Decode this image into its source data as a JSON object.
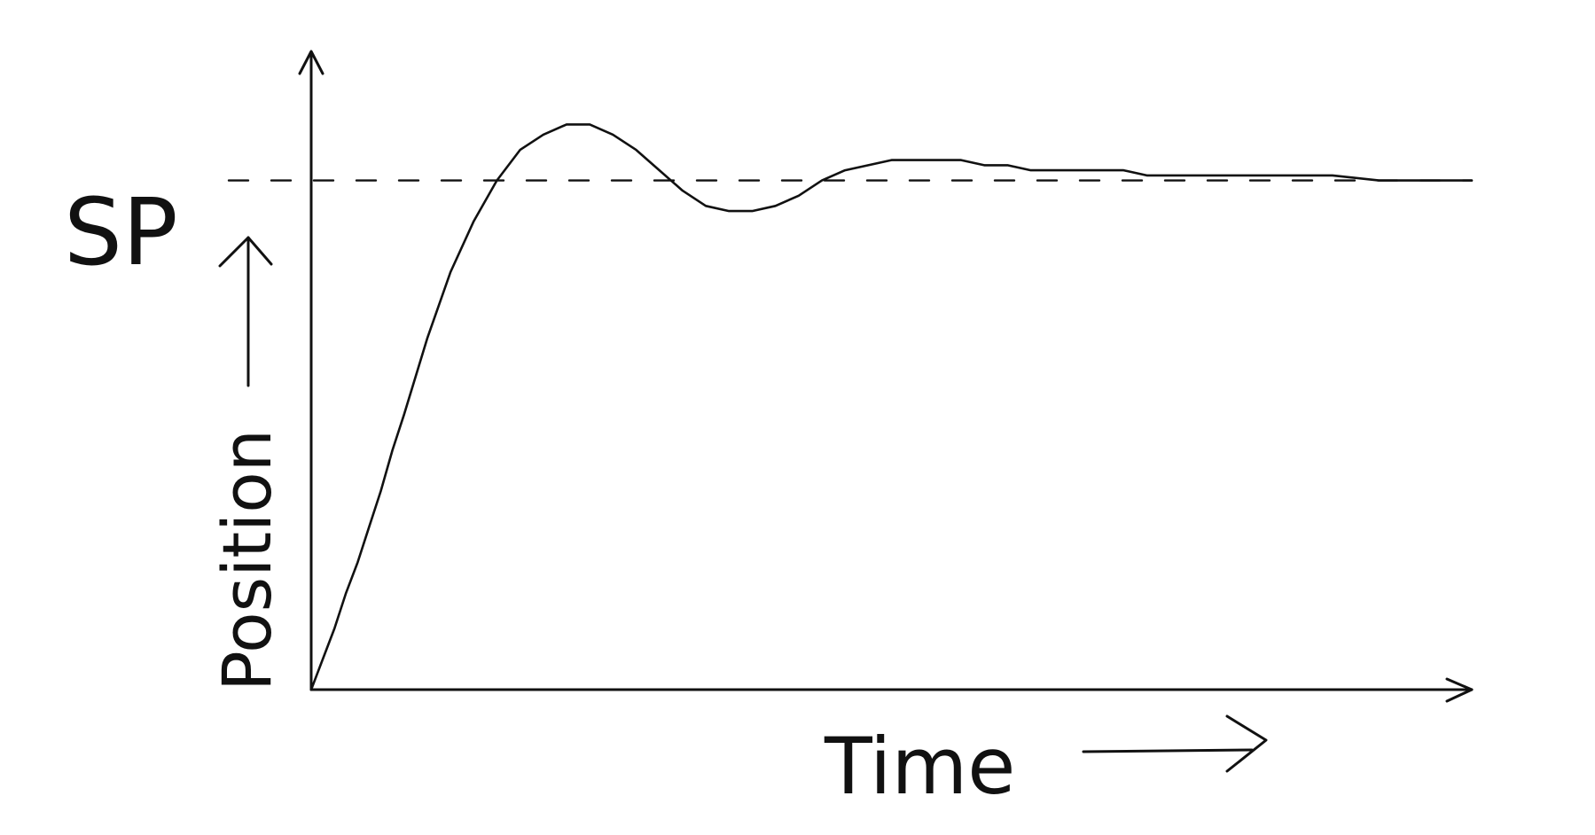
{
  "chart_data": {
    "type": "line",
    "title": "",
    "xlabel": "Time",
    "ylabel": "Position",
    "xlim": [
      0,
      100
    ],
    "ylim": [
      0,
      1.25
    ],
    "grid": false,
    "legend": "none",
    "reference_lines": [
      {
        "label": "SP",
        "y": 1.0,
        "style": "dashed"
      }
    ],
    "series": [
      {
        "x": [
          0,
          1,
          2,
          3,
          4,
          5,
          6,
          7,
          8,
          10,
          12,
          14,
          16,
          18,
          20,
          22,
          24,
          26,
          28,
          30,
          32,
          34,
          36,
          38,
          40,
          42,
          44,
          46,
          48,
          50,
          52,
          54,
          56,
          58,
          60,
          62,
          64,
          66,
          68,
          70,
          72,
          74,
          76,
          78,
          80,
          84,
          88,
          92,
          96,
          100
        ],
        "y": [
          0,
          0.06,
          0.12,
          0.19,
          0.25,
          0.32,
          0.39,
          0.47,
          0.54,
          0.69,
          0.82,
          0.92,
          1.0,
          1.06,
          1.09,
          1.11,
          1.11,
          1.09,
          1.06,
          1.02,
          0.98,
          0.95,
          0.94,
          0.94,
          0.95,
          0.97,
          1.0,
          1.02,
          1.03,
          1.04,
          1.04,
          1.04,
          1.04,
          1.03,
          1.03,
          1.02,
          1.02,
          1.02,
          1.02,
          1.02,
          1.01,
          1.01,
          1.01,
          1.01,
          1.01,
          1.01,
          1.01,
          1.0,
          1.0,
          1.0
        ]
      }
    ]
  },
  "colors": {
    "ink": "#111111",
    "background": "#ffffff"
  }
}
